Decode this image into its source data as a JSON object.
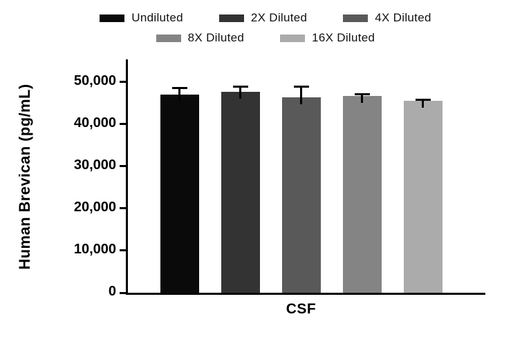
{
  "chart_data": {
    "type": "bar",
    "title": "",
    "xlabel": "",
    "ylabel": "Human Brevican (pg/mL)",
    "categories": [
      "CSF"
    ],
    "series": [
      {
        "name": "Undiluted",
        "color": "#0a0a0a",
        "values": [
          47000
        ],
        "errors": [
          1500
        ]
      },
      {
        "name": "2X Diluted",
        "color": "#333333",
        "values": [
          47600
        ],
        "errors": [
          1300
        ]
      },
      {
        "name": "4X Diluted",
        "color": "#595959",
        "values": [
          46400
        ],
        "errors": [
          2500
        ]
      },
      {
        "name": "8X Diluted",
        "color": "#848484",
        "values": [
          46600
        ],
        "errors": [
          400
        ]
      },
      {
        "name": "16X Diluted",
        "color": "#ababab",
        "values": [
          45500
        ],
        "errors": [
          300
        ]
      }
    ],
    "yticks": [
      0,
      10000,
      20000,
      30000,
      40000,
      50000
    ],
    "ytick_labels": [
      "0",
      "10,000",
      "20,000",
      "30,000",
      "40,000",
      "50,000"
    ],
    "ylim": [
      0,
      55000
    ],
    "grid": false,
    "legend_position": "top",
    "legend_rows": [
      3,
      2
    ]
  }
}
